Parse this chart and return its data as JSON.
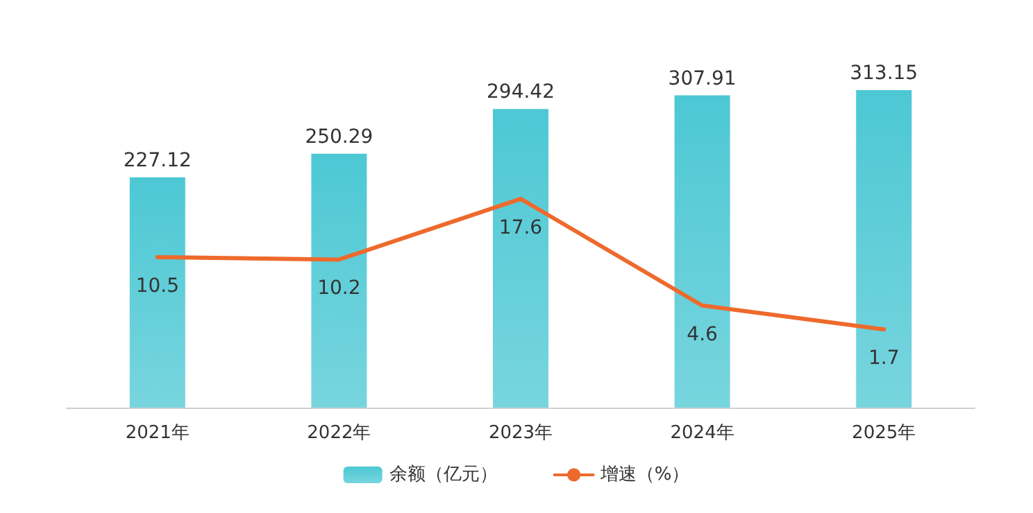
{
  "chart_data": {
    "type": "bar",
    "categories": [
      "2021年",
      "2022年",
      "2023年",
      "2024年",
      "2025年"
    ],
    "series": [
      {
        "name": "余额（亿元）",
        "color": "#4cc8d4",
        "values": [
          227.12,
          250.29,
          294.42,
          307.91,
          313.15
        ]
      },
      {
        "name": "增速（%）",
        "type": "line",
        "axis": "y2",
        "color": "#ee6a2c",
        "values": [
          10.5,
          10.2,
          17.6,
          4.6,
          1.7
        ]
      }
    ],
    "tick_labels": "x",
    "data_labels": true,
    "legend": "bottom",
    "grid": false,
    "marker": "none",
    "line_style": "solid"
  }
}
